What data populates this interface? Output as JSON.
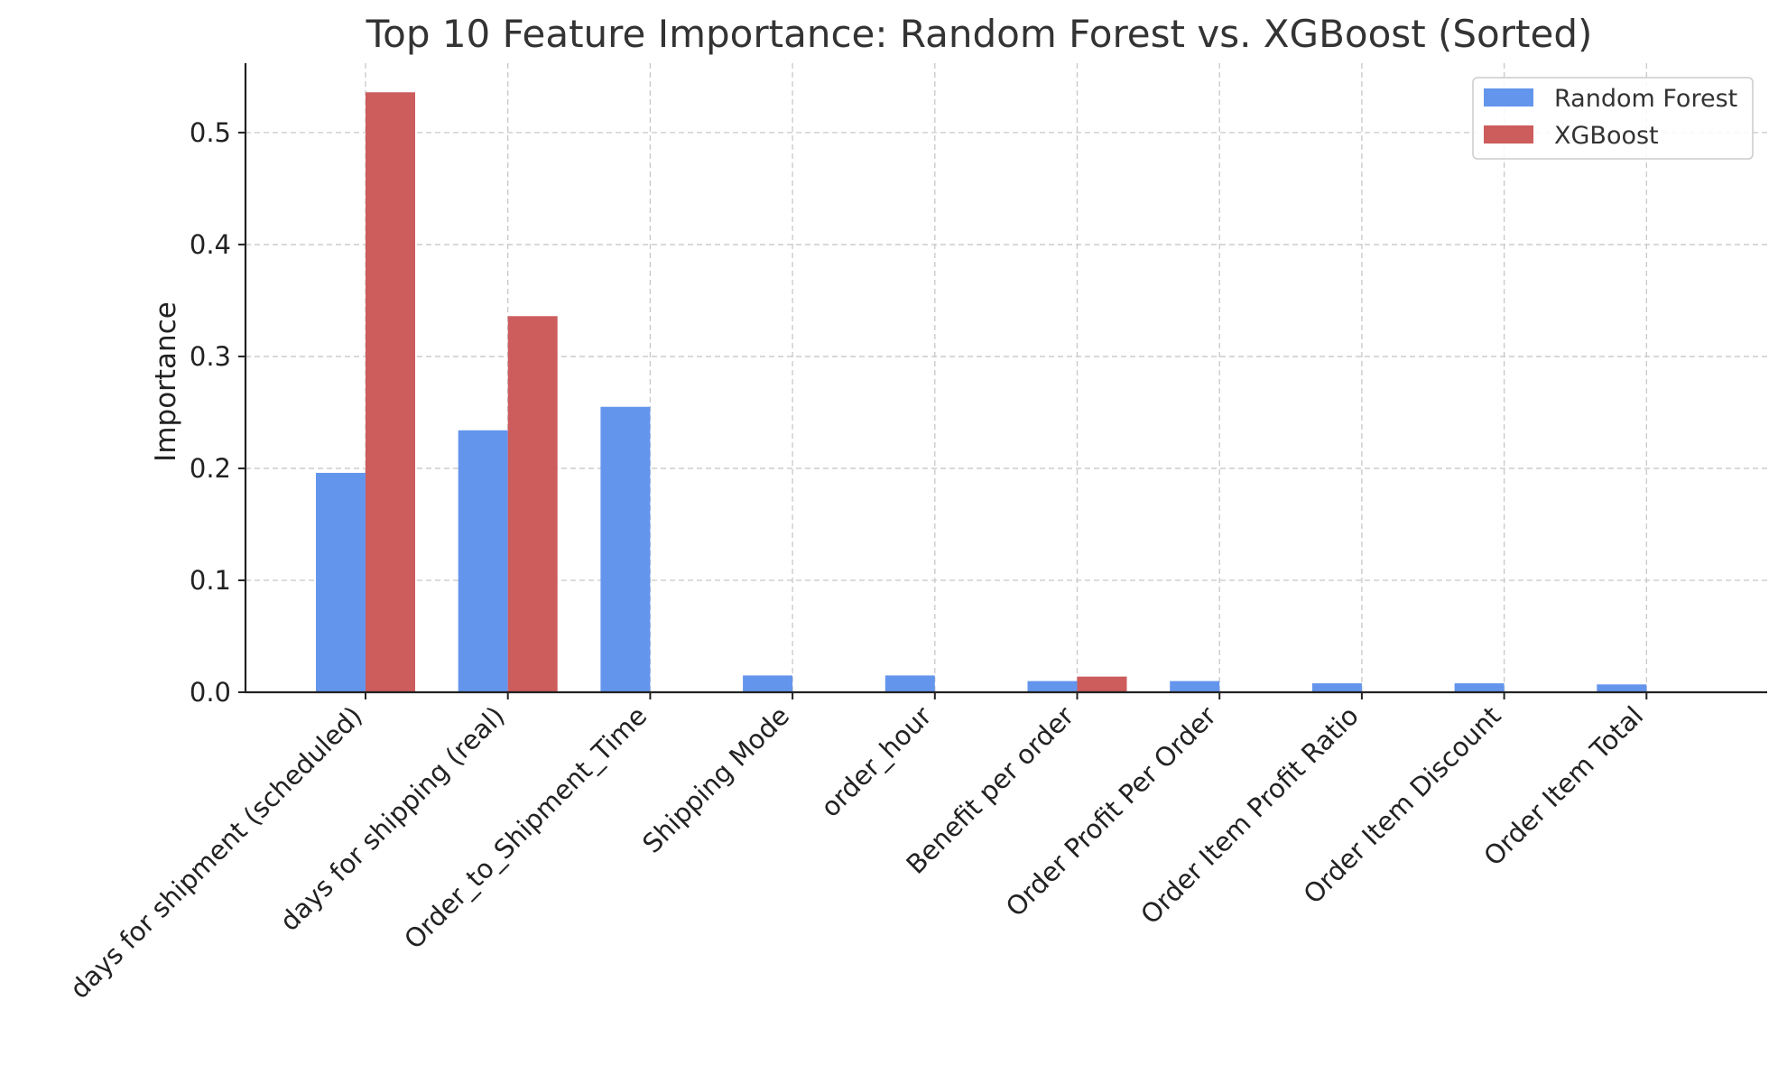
{
  "chart_data": {
    "type": "bar",
    "title": "Top 10 Feature Importance: Random Forest vs. XGBoost (Sorted)",
    "xlabel": "",
    "ylabel": "Importance",
    "ylim": [
      0,
      0.562
    ],
    "yticks": [
      0.0,
      0.1,
      0.2,
      0.3,
      0.4,
      0.5
    ],
    "grid": true,
    "legend_position": "top-right",
    "categories": [
      "days for shipment (scheduled)",
      "days for shipping (real)",
      "Order_to_Shipment_Time",
      "Shipping Mode",
      "order_hour",
      "Benefit per order",
      "Order Profit Per Order",
      "Order Item Profit Ratio",
      "Order Item Discount",
      "Order Item Total"
    ],
    "series": [
      {
        "name": "Random Forest",
        "color": "#6495ED",
        "values": [
          0.196,
          0.234,
          0.255,
          0.015,
          0.015,
          0.01,
          0.01,
          0.008,
          0.008,
          0.007
        ]
      },
      {
        "name": "XGBoost",
        "color": "#CD5C5C",
        "values": [
          0.536,
          0.336,
          0.0,
          0.0,
          0.0,
          0.014,
          0.0,
          0.0,
          0.0,
          0.0
        ]
      }
    ]
  }
}
